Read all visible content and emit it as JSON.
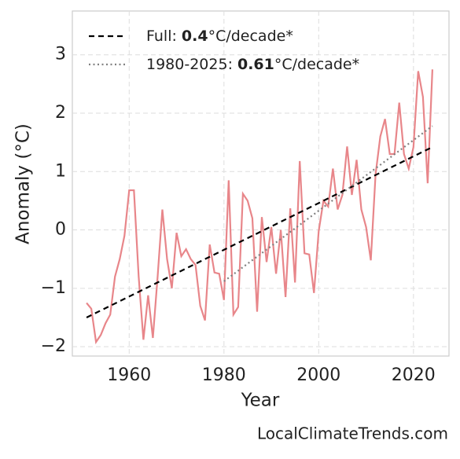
{
  "chart_data": {
    "type": "line",
    "x_label": "Year",
    "y_label": "Anomaly (°C)",
    "source": "LocalClimateTrends.com",
    "xlim": [
      1948,
      2027.5
    ],
    "ylim": [
      -2.16,
      3.75
    ],
    "xticks": [
      1960,
      1980,
      2000,
      2020
    ],
    "yticks": [
      {
        "value": -2,
        "label": "−2"
      },
      {
        "value": -1,
        "label": "−1"
      },
      0,
      1,
      2,
      3
    ],
    "grid": true,
    "legend": "upper left",
    "x": [
      1951,
      1952,
      1953,
      1954,
      1955,
      1956,
      1957,
      1958,
      1959,
      1960,
      1961,
      1962,
      1963,
      1964,
      1965,
      1966,
      1967,
      1968,
      1969,
      1970,
      1971,
      1972,
      1973,
      1974,
      1975,
      1976,
      1977,
      1978,
      1979,
      1980,
      1981,
      1982,
      1983,
      1984,
      1985,
      1986,
      1987,
      1988,
      1989,
      1990,
      1991,
      1992,
      1993,
      1994,
      1995,
      1996,
      1997,
      1998,
      1999,
      2000,
      2001,
      2002,
      2003,
      2004,
      2005,
      2006,
      2007,
      2008,
      2009,
      2010,
      2011,
      2012,
      2013,
      2014,
      2015,
      2016,
      2017,
      2018,
      2019,
      2020,
      2021,
      2022,
      2023,
      2024
    ],
    "series": [
      {
        "color": "#e8868a",
        "values": [
          -1.25,
          -1.35,
          -1.92,
          -1.8,
          -1.6,
          -1.45,
          -0.8,
          -0.5,
          -0.1,
          0.68,
          0.68,
          -0.8,
          -1.88,
          -1.12,
          -1.85,
          -0.8,
          0.35,
          -0.5,
          -1.0,
          -0.05,
          -0.45,
          -0.33,
          -0.5,
          -0.6,
          -1.3,
          -1.55,
          -0.25,
          -0.73,
          -0.75,
          -1.2,
          0.85,
          -1.45,
          -1.32,
          0.62,
          0.5,
          0.2,
          -1.4,
          0.22,
          -0.55,
          0.05,
          -0.75,
          0.0,
          -1.15,
          0.37,
          -0.9,
          1.18,
          -0.4,
          -0.42,
          -1.08,
          -0.02,
          0.5,
          0.4,
          1.05,
          0.35,
          0.6,
          1.43,
          0.6,
          1.2,
          0.35,
          0.05,
          -0.52,
          0.95,
          1.6,
          1.9,
          1.3,
          1.3,
          2.18,
          1.3,
          1.05,
          1.42,
          2.72,
          2.28,
          0.8,
          2.75
        ]
      },
      {
        "name": "Full:",
        "rate": 0.4,
        "unit": "°C/decade*",
        "color": "#000000",
        "dash": "7 5",
        "x": [
          1951,
          2024
        ],
        "values": [
          -1.5,
          1.42
        ]
      },
      {
        "name": "1980-2025:",
        "rate": 0.61,
        "unit": "°C/decade*",
        "color": "#808080",
        "dash": "2 3.5",
        "x": [
          1980,
          2024
        ],
        "values": [
          -0.88,
          1.78
        ]
      }
    ]
  }
}
